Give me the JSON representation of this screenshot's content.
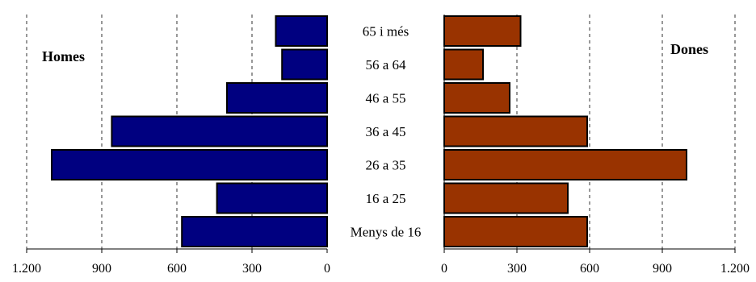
{
  "chart_data": {
    "type": "bar",
    "orientation": "horizontal",
    "layout": "population-pyramid",
    "categories": [
      "65 i més",
      "56 a 64",
      "46 a 55",
      "36 a 45",
      "26 a 35",
      "16 a 25",
      "Menys de 16"
    ],
    "series": [
      {
        "name": "Homes",
        "side": "left",
        "color": "#000080",
        "values": [
          205,
          180,
          400,
          860,
          1100,
          440,
          580
        ]
      },
      {
        "name": "Dones",
        "side": "right",
        "color": "#993300",
        "values": [
          315,
          160,
          270,
          590,
          1000,
          510,
          590
        ]
      }
    ],
    "xlim": [
      0,
      1200
    ],
    "ticks": [
      {
        "value": 0,
        "label": "0"
      },
      {
        "value": 300,
        "label": "300"
      },
      {
        "value": 600,
        "label": "600"
      },
      {
        "value": 900,
        "label": "900"
      },
      {
        "value": 1200,
        "label": "1.200"
      }
    ],
    "grid": true,
    "grid_style": "dashed"
  }
}
